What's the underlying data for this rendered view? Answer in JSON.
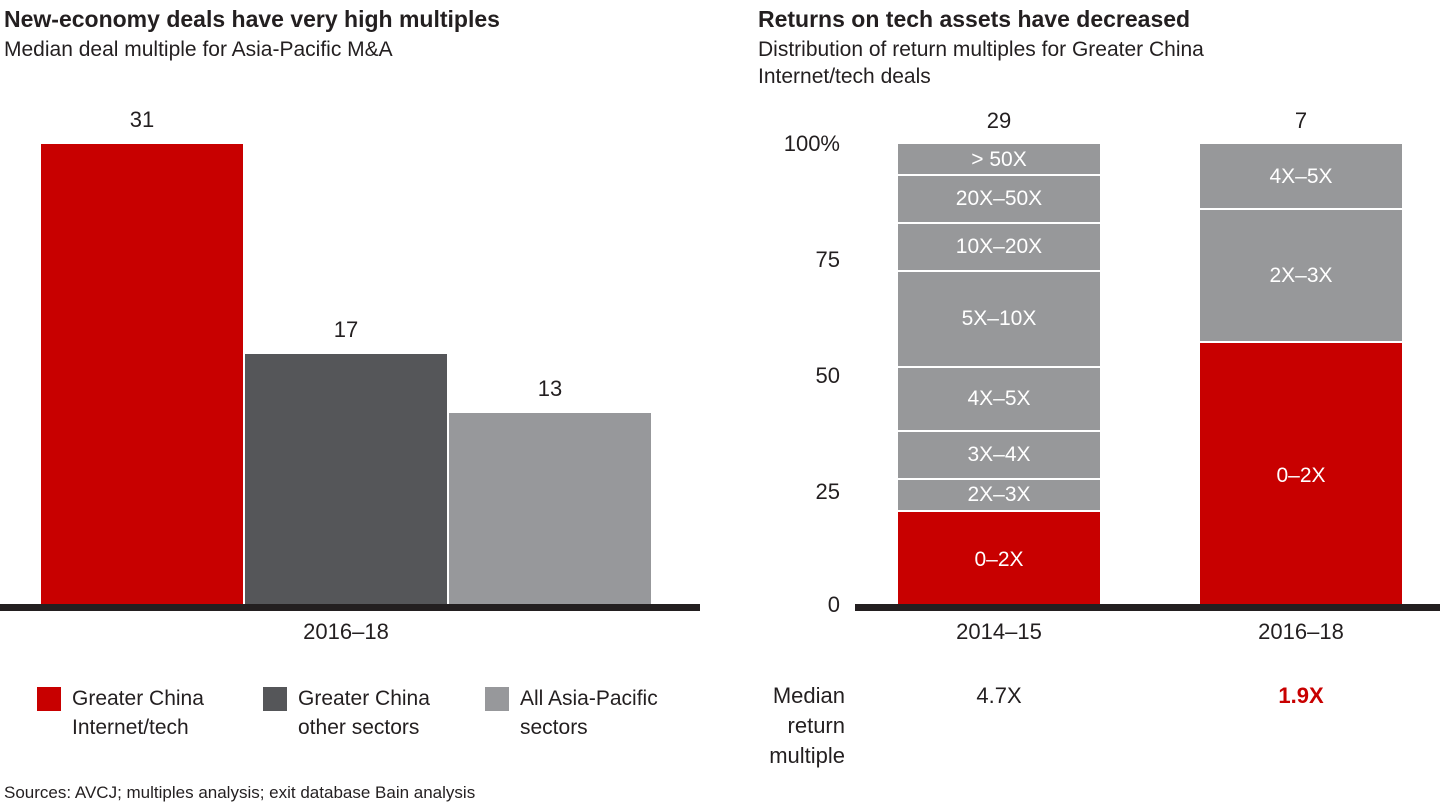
{
  "colors": {
    "bain_red": "#c80000",
    "dark_gray": "#555659",
    "light_gray": "#97989b",
    "stack_gray": "#97989a",
    "axis_black": "#231f20",
    "text": "#231f20",
    "segment_label_white": "#ffffff"
  },
  "titles": {
    "right_subtitle_line1": "Distribution of return multiples for Greater China",
    "right_subtitle_line2": "Internet/tech deals"
  },
  "legend": {
    "items": [
      {
        "line1": "Greater China",
        "line2": "Internet/tech",
        "color": "#c80000"
      },
      {
        "line1": "Greater China",
        "line2": "other sectors",
        "color": "#555659"
      },
      {
        "line1": "All Asia-Pacific",
        "line2": "sectors",
        "color": "#97989b"
      }
    ]
  },
  "footer": {
    "sources": "Sources: AVCJ; multiples analysis; exit database Bain analysis"
  },
  "chart_data": [
    {
      "type": "bar",
      "title": "New-economy deals have very high multiples",
      "subtitle": "Median deal multiple for Asia-Pacific M&A",
      "categories": [
        "Greater China Internet/tech",
        "Greater China other sectors",
        "All Asia-Pacific sectors"
      ],
      "values": [
        31,
        17,
        13
      ],
      "colors": [
        "#c80000",
        "#555659",
        "#97989b"
      ],
      "xlabel": "2016–18",
      "ylim": [
        0,
        31
      ],
      "grid": false,
      "legend_position": "bottom"
    },
    {
      "type": "bar",
      "stacked": true,
      "title": "Returns on tech assets have decreased",
      "subtitle": "Distribution of return multiples for Greater China Internet/tech deals",
      "categories": [
        "2014–15",
        "2016–18"
      ],
      "bar_totals": [
        "29",
        "7"
      ],
      "yticks": [
        "100%",
        "75",
        "50",
        "25",
        "0"
      ],
      "ylim": [
        0,
        100
      ],
      "grid": false,
      "series": [
        {
          "name": "0–2X",
          "values": [
            20.7,
            57.1
          ],
          "color": "#c80000"
        },
        {
          "name": "2X–3X",
          "values": [
            6.9,
            28.6
          ],
          "color": "#97989a"
        },
        {
          "name": "3X–4X",
          "values": [
            10.3,
            0
          ],
          "color": "#97989a"
        },
        {
          "name": "4X–5X",
          "values": [
            13.8,
            14.3
          ],
          "color": "#97989a"
        },
        {
          "name": "5X–10X",
          "values": [
            20.7,
            0
          ],
          "color": "#97989a"
        },
        {
          "name": "10X–20X",
          "values": [
            10.3,
            0
          ],
          "color": "#97989a"
        },
        {
          "name": "20X–50X",
          "values": [
            10.3,
            0
          ],
          "color": "#97989a"
        },
        {
          "name": "> 50X",
          "values": [
            6.9,
            0
          ],
          "color": "#97989a"
        }
      ],
      "median_row": {
        "label_lines": [
          "Median",
          "return",
          "multiple"
        ],
        "values": [
          "4.7X",
          "1.9X"
        ],
        "value_colors": [
          "#231f20",
          "#c80000"
        ]
      }
    }
  ]
}
